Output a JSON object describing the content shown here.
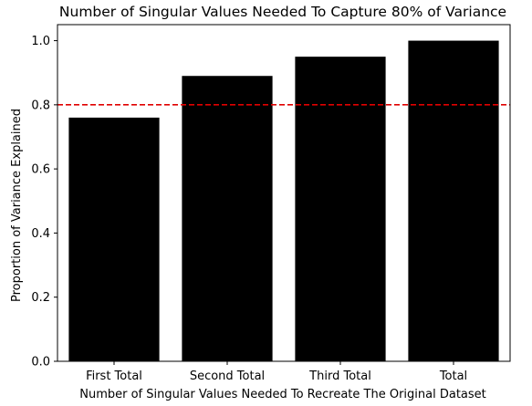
{
  "chart_data": {
    "type": "bar",
    "title": "Number of Singular Values Needed To Capture 80% of Variance",
    "xlabel": "Number of Singular Values Needed To Recreate The Original Dataset",
    "ylabel": "Proportion of Variance Explained",
    "categories": [
      "First Total",
      "Second Total",
      "Third Total",
      "Total"
    ],
    "values": [
      0.76,
      0.89,
      0.95,
      1.0
    ],
    "ylim": [
      0,
      1.05
    ],
    "yticks": [
      0.0,
      0.2,
      0.4,
      0.6,
      0.8,
      1.0
    ],
    "ytick_labels": [
      "0.0",
      "0.2",
      "0.4",
      "0.6",
      "0.8",
      "1.0"
    ],
    "bar_color": "#000000",
    "threshold": {
      "value": 0.8,
      "color": "#e00000",
      "style": "dashed"
    },
    "grid": false,
    "legend": "none"
  }
}
